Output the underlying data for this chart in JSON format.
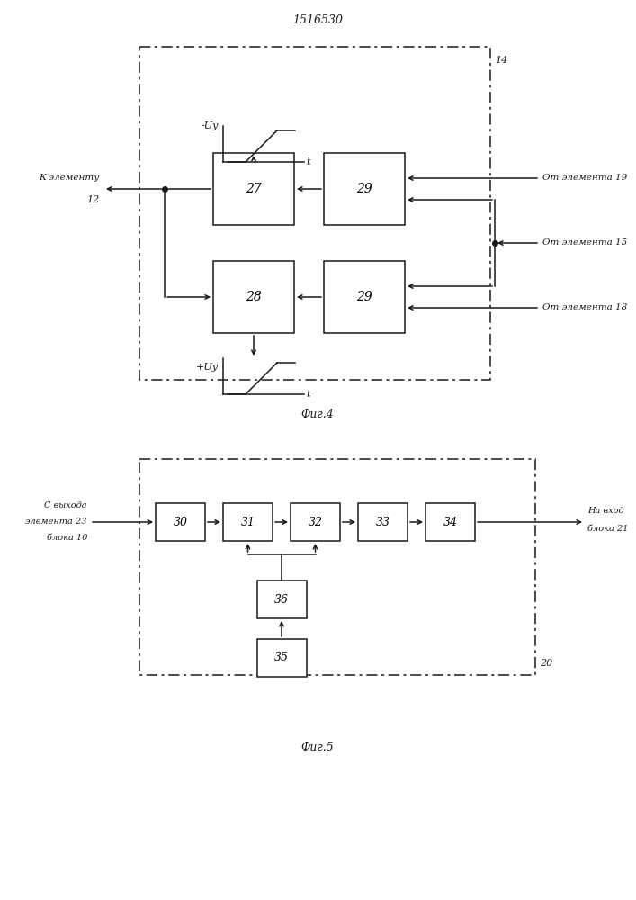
{
  "title": "1516530",
  "fig4_label": "Фиг.4",
  "fig5_label": "Фиг.5",
  "bg_color": "#ffffff",
  "lc": "#1a1a1a",
  "box_fc": "#ffffff",
  "label_27": "27",
  "label_28": "28",
  "label_29a": "29",
  "label_29b": "29",
  "label_14": "14",
  "label_12": "12",
  "text_k_elem": "К элементу",
  "text_ot19": "От элемента 19",
  "text_ot15": "От элемента 15",
  "text_ot18": "От элемента 18",
  "text_mvy": "-Uy",
  "text_pvy": "+Uy",
  "text_t": "t",
  "label_30": "30",
  "label_31": "31",
  "label_32": "32",
  "label_33": "33",
  "label_34": "34",
  "label_35": "35",
  "label_36": "36",
  "label_20": "20",
  "text_svyhoda": "С выхода",
  "text_elem23": "элемента 23",
  "text_blok10": "блока 10",
  "text_navhod": "На вход",
  "text_blok21": "блока 21"
}
